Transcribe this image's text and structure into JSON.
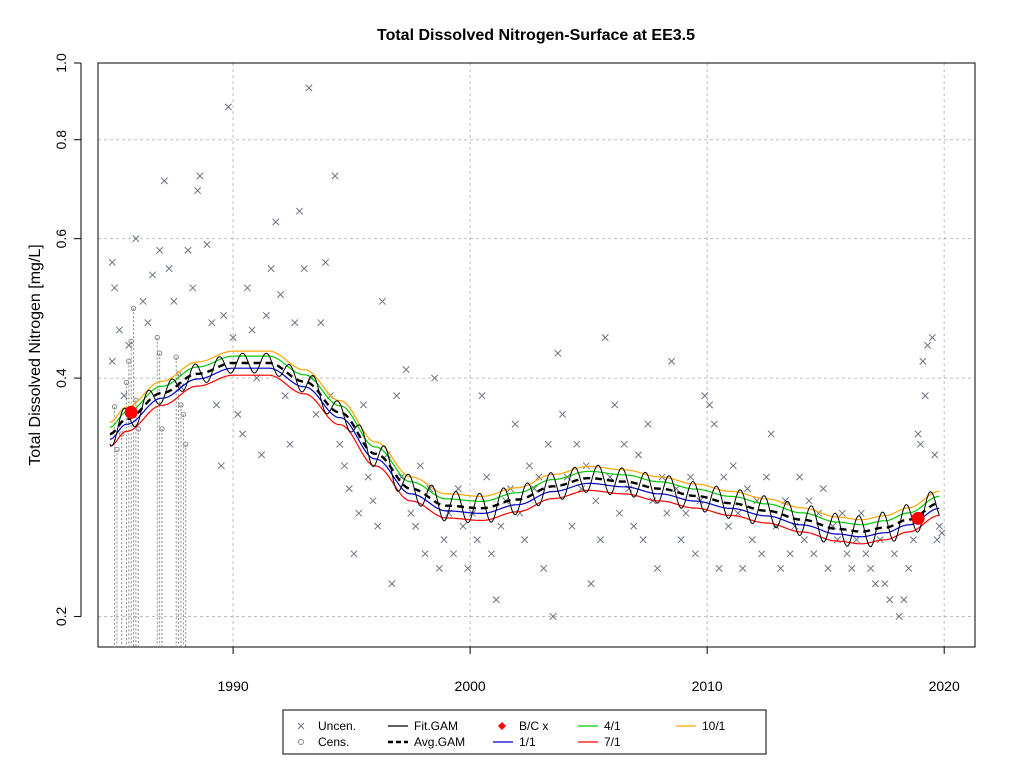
{
  "chart_data": {
    "type": "scatter",
    "title": "Total Dissolved Nitrogen-Surface at EE3.5",
    "xlabel": "",
    "ylabel": "Total Dissolved Nitrogen [mg/L]",
    "log_y": true,
    "xlim": [
      1984.3,
      2021.3
    ],
    "ylim": [
      0.183,
      1.0
    ],
    "x_ticks": [
      1990,
      2000,
      2010,
      2020
    ],
    "x_tick_labels": [
      "1990",
      "2000",
      "2010",
      "2020"
    ],
    "y_ticks": [
      0.2,
      0.4,
      0.6,
      0.8,
      1.0
    ],
    "y_tick_labels": [
      "0.2",
      "0.4",
      "0.6",
      "0.8",
      "1.0"
    ],
    "grid": true,
    "legend_position": "bottom",
    "legend": [
      {
        "label": "Uncen.",
        "kind": "x-marker"
      },
      {
        "label": "Fit.GAM",
        "kind": "line",
        "color": "#000000"
      },
      {
        "label": "B/C x",
        "kind": "diamond",
        "color": "#ff0000"
      },
      {
        "label": "4/1",
        "kind": "line",
        "color": "#00cc00"
      },
      {
        "label": "10/1",
        "kind": "line",
        "color": "#ffa500"
      },
      {
        "label": "Cens.",
        "kind": "o-marker"
      },
      {
        "label": "Avg.GAM",
        "kind": "dashed",
        "color": "#000000"
      },
      {
        "label": "1/1",
        "kind": "line",
        "color": "#0000cc"
      },
      {
        "label": "7/1",
        "kind": "line",
        "color": "#ff0000"
      }
    ],
    "colors": {
      "points": "#6b7384",
      "fit": "#000000",
      "avg": "#000000",
      "d41": "#00cc00",
      "d101": "#ffa500",
      "d11": "#0000cc",
      "d71": "#ff0000",
      "bc": "#ff0000"
    },
    "trend_knots": {
      "x": [
        1984.8,
        1985.5,
        1987,
        1988.5,
        1990,
        1991.5,
        1993,
        1994.5,
        1996,
        1997.5,
        1999,
        2000.5,
        2002,
        2003.5,
        2005,
        2006.5,
        2008,
        2009.5,
        2011,
        2012.5,
        2014,
        2015.5,
        2016.5,
        2017.5,
        2018.5,
        2019.8
      ],
      "y": [
        0.34,
        0.355,
        0.383,
        0.405,
        0.418,
        0.418,
        0.396,
        0.362,
        0.321,
        0.29,
        0.276,
        0.274,
        0.281,
        0.292,
        0.299,
        0.296,
        0.29,
        0.284,
        0.278,
        0.272,
        0.265,
        0.258,
        0.256,
        0.259,
        0.265,
        0.278
      ]
    },
    "seasonal_amplitude": 0.012,
    "band_offsets": {
      "d101": 1.035,
      "d41": 1.02,
      "d11": 0.985,
      "d71": 0.965
    },
    "bc_points": [
      {
        "x": 1985.7,
        "y": 0.362
      },
      {
        "x": 2018.9,
        "y": 0.266
      }
    ],
    "censored_points": [
      {
        "x": 1985.0,
        "y": 0.368
      },
      {
        "x": 1985.1,
        "y": 0.325
      },
      {
        "x": 1985.3,
        "y": 0.34
      },
      {
        "x": 1985.5,
        "y": 0.395
      },
      {
        "x": 1985.6,
        "y": 0.42
      },
      {
        "x": 1985.7,
        "y": 0.445
      },
      {
        "x": 1985.8,
        "y": 0.49
      },
      {
        "x": 1985.9,
        "y": 0.375
      },
      {
        "x": 1986.0,
        "y": 0.345
      },
      {
        "x": 1986.8,
        "y": 0.45
      },
      {
        "x": 1986.9,
        "y": 0.43
      },
      {
        "x": 1987.0,
        "y": 0.345
      },
      {
        "x": 1987.6,
        "y": 0.425
      },
      {
        "x": 1987.7,
        "y": 0.405
      },
      {
        "x": 1987.8,
        "y": 0.37
      },
      {
        "x": 1987.9,
        "y": 0.36
      },
      {
        "x": 1988.0,
        "y": 0.33
      }
    ],
    "uncensored_points": [
      {
        "x": 1984.9,
        "y": 0.56
      },
      {
        "x": 1985.0,
        "y": 0.52
      },
      {
        "x": 1985.2,
        "y": 0.46
      },
      {
        "x": 1984.9,
        "y": 0.42
      },
      {
        "x": 1985.4,
        "y": 0.38
      },
      {
        "x": 1985.6,
        "y": 0.44
      },
      {
        "x": 1985.9,
        "y": 0.6
      },
      {
        "x": 1986.2,
        "y": 0.5
      },
      {
        "x": 1986.4,
        "y": 0.47
      },
      {
        "x": 1986.6,
        "y": 0.54
      },
      {
        "x": 1986.9,
        "y": 0.58
      },
      {
        "x": 1987.1,
        "y": 0.71
      },
      {
        "x": 1987.3,
        "y": 0.55
      },
      {
        "x": 1987.5,
        "y": 0.5
      },
      {
        "x": 1987.8,
        "y": 0.39
      },
      {
        "x": 1988.1,
        "y": 0.58
      },
      {
        "x": 1988.3,
        "y": 0.52
      },
      {
        "x": 1988.5,
        "y": 0.69
      },
      {
        "x": 1988.6,
        "y": 0.72
      },
      {
        "x": 1988.9,
        "y": 0.59
      },
      {
        "x": 1989.1,
        "y": 0.47
      },
      {
        "x": 1989.3,
        "y": 0.37
      },
      {
        "x": 1989.5,
        "y": 0.31
      },
      {
        "x": 1989.6,
        "y": 0.48
      },
      {
        "x": 1989.8,
        "y": 0.88
      },
      {
        "x": 1990.0,
        "y": 0.45
      },
      {
        "x": 1990.2,
        "y": 0.36
      },
      {
        "x": 1990.4,
        "y": 0.34
      },
      {
        "x": 1990.6,
        "y": 0.52
      },
      {
        "x": 1990.8,
        "y": 0.46
      },
      {
        "x": 1991.0,
        "y": 0.4
      },
      {
        "x": 1991.2,
        "y": 0.32
      },
      {
        "x": 1991.4,
        "y": 0.48
      },
      {
        "x": 1991.6,
        "y": 0.55
      },
      {
        "x": 1991.8,
        "y": 0.63
      },
      {
        "x": 1992.0,
        "y": 0.51
      },
      {
        "x": 1992.2,
        "y": 0.38
      },
      {
        "x": 1992.4,
        "y": 0.33
      },
      {
        "x": 1992.6,
        "y": 0.47
      },
      {
        "x": 1992.8,
        "y": 0.65
      },
      {
        "x": 1993.0,
        "y": 0.55
      },
      {
        "x": 1993.2,
        "y": 0.93
      },
      {
        "x": 1993.3,
        "y": 0.4
      },
      {
        "x": 1993.5,
        "y": 0.36
      },
      {
        "x": 1993.7,
        "y": 0.47
      },
      {
        "x": 1993.9,
        "y": 0.56
      },
      {
        "x": 1994.1,
        "y": 0.38
      },
      {
        "x": 1994.3,
        "y": 0.72
      },
      {
        "x": 1994.5,
        "y": 0.33
      },
      {
        "x": 1994.7,
        "y": 0.31
      },
      {
        "x": 1994.9,
        "y": 0.29
      },
      {
        "x": 1995.1,
        "y": 0.24
      },
      {
        "x": 1995.3,
        "y": 0.27
      },
      {
        "x": 1995.5,
        "y": 0.37
      },
      {
        "x": 1995.7,
        "y": 0.3
      },
      {
        "x": 1995.9,
        "y": 0.28
      },
      {
        "x": 1996.1,
        "y": 0.26
      },
      {
        "x": 1996.3,
        "y": 0.5
      },
      {
        "x": 1996.5,
        "y": 0.32
      },
      {
        "x": 1996.7,
        "y": 0.22
      },
      {
        "x": 1996.9,
        "y": 0.38
      },
      {
        "x": 1997.1,
        "y": 0.3
      },
      {
        "x": 1997.3,
        "y": 0.41
      },
      {
        "x": 1997.5,
        "y": 0.27
      },
      {
        "x": 1997.7,
        "y": 0.26
      },
      {
        "x": 1997.9,
        "y": 0.31
      },
      {
        "x": 1998.1,
        "y": 0.24
      },
      {
        "x": 1998.3,
        "y": 0.29
      },
      {
        "x": 1998.5,
        "y": 0.4
      },
      {
        "x": 1998.7,
        "y": 0.23
      },
      {
        "x": 1998.9,
        "y": 0.25
      },
      {
        "x": 1999.1,
        "y": 0.27
      },
      {
        "x": 1999.3,
        "y": 0.24
      },
      {
        "x": 1999.5,
        "y": 0.29
      },
      {
        "x": 1999.7,
        "y": 0.26
      },
      {
        "x": 1999.9,
        "y": 0.23
      },
      {
        "x": 2000.1,
        "y": 0.27
      },
      {
        "x": 2000.3,
        "y": 0.25
      },
      {
        "x": 2000.5,
        "y": 0.38
      },
      {
        "x": 2000.7,
        "y": 0.3
      },
      {
        "x": 2000.9,
        "y": 0.24
      },
      {
        "x": 2001.1,
        "y": 0.21
      },
      {
        "x": 2001.3,
        "y": 0.26
      },
      {
        "x": 2001.5,
        "y": 0.28
      },
      {
        "x": 2001.7,
        "y": 0.29
      },
      {
        "x": 2001.9,
        "y": 0.35
      },
      {
        "x": 2002.1,
        "y": 0.27
      },
      {
        "x": 2002.3,
        "y": 0.25
      },
      {
        "x": 2002.5,
        "y": 0.31
      },
      {
        "x": 2002.7,
        "y": 0.29
      },
      {
        "x": 2002.9,
        "y": 0.3
      },
      {
        "x": 2003.1,
        "y": 0.23
      },
      {
        "x": 2003.3,
        "y": 0.33
      },
      {
        "x": 2003.5,
        "y": 0.2
      },
      {
        "x": 2003.7,
        "y": 0.43
      },
      {
        "x": 2003.9,
        "y": 0.36
      },
      {
        "x": 2004.1,
        "y": 0.3
      },
      {
        "x": 2004.3,
        "y": 0.26
      },
      {
        "x": 2004.5,
        "y": 0.33
      },
      {
        "x": 2004.7,
        "y": 0.29
      },
      {
        "x": 2004.9,
        "y": 0.31
      },
      {
        "x": 2005.1,
        "y": 0.22
      },
      {
        "x": 2005.3,
        "y": 0.28
      },
      {
        "x": 2005.5,
        "y": 0.25
      },
      {
        "x": 2005.7,
        "y": 0.45
      },
      {
        "x": 2005.9,
        "y": 0.3
      },
      {
        "x": 2006.1,
        "y": 0.37
      },
      {
        "x": 2006.3,
        "y": 0.27
      },
      {
        "x": 2006.5,
        "y": 0.33
      },
      {
        "x": 2006.7,
        "y": 0.29
      },
      {
        "x": 2006.9,
        "y": 0.26
      },
      {
        "x": 2007.1,
        "y": 0.32
      },
      {
        "x": 2007.3,
        "y": 0.25
      },
      {
        "x": 2007.5,
        "y": 0.35
      },
      {
        "x": 2007.7,
        "y": 0.28
      },
      {
        "x": 2007.9,
        "y": 0.23
      },
      {
        "x": 2008.1,
        "y": 0.3
      },
      {
        "x": 2008.3,
        "y": 0.27
      },
      {
        "x": 2008.5,
        "y": 0.42
      },
      {
        "x": 2008.7,
        "y": 0.29
      },
      {
        "x": 2008.9,
        "y": 0.25
      },
      {
        "x": 2009.1,
        "y": 0.27
      },
      {
        "x": 2009.3,
        "y": 0.3
      },
      {
        "x": 2009.5,
        "y": 0.24
      },
      {
        "x": 2009.7,
        "y": 0.28
      },
      {
        "x": 2009.9,
        "y": 0.38
      },
      {
        "x": 2010.1,
        "y": 0.37
      },
      {
        "x": 2010.3,
        "y": 0.35
      },
      {
        "x": 2010.5,
        "y": 0.23
      },
      {
        "x": 2010.7,
        "y": 0.3
      },
      {
        "x": 2010.9,
        "y": 0.26
      },
      {
        "x": 2011.1,
        "y": 0.31
      },
      {
        "x": 2011.3,
        "y": 0.27
      },
      {
        "x": 2011.5,
        "y": 0.23
      },
      {
        "x": 2011.7,
        "y": 0.29
      },
      {
        "x": 2011.9,
        "y": 0.25
      },
      {
        "x": 2012.1,
        "y": 0.28
      },
      {
        "x": 2012.3,
        "y": 0.24
      },
      {
        "x": 2012.5,
        "y": 0.3
      },
      {
        "x": 2012.7,
        "y": 0.34
      },
      {
        "x": 2012.9,
        "y": 0.26
      },
      {
        "x": 2013.1,
        "y": 0.23
      },
      {
        "x": 2013.3,
        "y": 0.28
      },
      {
        "x": 2013.5,
        "y": 0.24
      },
      {
        "x": 2013.7,
        "y": 0.26
      },
      {
        "x": 2013.9,
        "y": 0.3
      },
      {
        "x": 2014.1,
        "y": 0.25
      },
      {
        "x": 2014.3,
        "y": 0.28
      },
      {
        "x": 2014.5,
        "y": 0.24
      },
      {
        "x": 2014.7,
        "y": 0.27
      },
      {
        "x": 2014.9,
        "y": 0.29
      },
      {
        "x": 2015.1,
        "y": 0.23
      },
      {
        "x": 2015.3,
        "y": 0.26
      },
      {
        "x": 2015.5,
        "y": 0.25
      },
      {
        "x": 2015.7,
        "y": 0.27
      },
      {
        "x": 2015.9,
        "y": 0.24
      },
      {
        "x": 2016.1,
        "y": 0.23
      },
      {
        "x": 2016.3,
        "y": 0.25
      },
      {
        "x": 2016.5,
        "y": 0.27
      },
      {
        "x": 2016.7,
        "y": 0.24
      },
      {
        "x": 2016.9,
        "y": 0.23
      },
      {
        "x": 2017.1,
        "y": 0.22
      },
      {
        "x": 2017.3,
        "y": 0.25
      },
      {
        "x": 2017.5,
        "y": 0.22
      },
      {
        "x": 2017.7,
        "y": 0.21
      },
      {
        "x": 2017.9,
        "y": 0.24
      },
      {
        "x": 2018.1,
        "y": 0.2
      },
      {
        "x": 2018.3,
        "y": 0.21
      },
      {
        "x": 2018.5,
        "y": 0.23
      },
      {
        "x": 2018.7,
        "y": 0.25
      },
      {
        "x": 2018.9,
        "y": 0.34
      },
      {
        "x": 2019.1,
        "y": 0.42
      },
      {
        "x": 2019.2,
        "y": 0.38
      },
      {
        "x": 2019.3,
        "y": 0.44
      },
      {
        "x": 2019.5,
        "y": 0.45
      },
      {
        "x": 2019.6,
        "y": 0.32
      },
      {
        "x": 2019.7,
        "y": 0.25
      },
      {
        "x": 2019.8,
        "y": 0.26
      },
      {
        "x": 2019.9,
        "y": 0.255
      },
      {
        "x": 2019.0,
        "y": 0.33
      }
    ]
  }
}
